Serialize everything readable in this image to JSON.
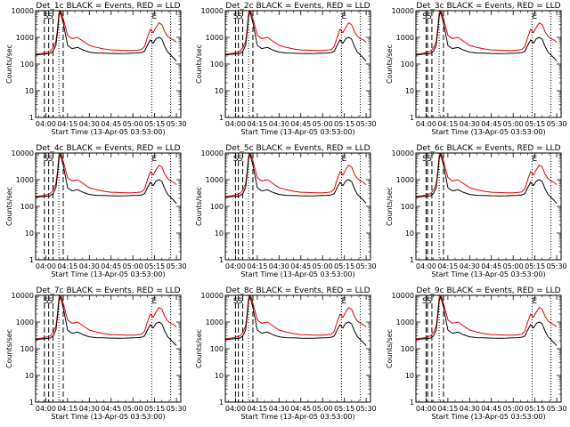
{
  "chart_data": {
    "type": "line",
    "grid": false,
    "y_scale": "log",
    "ylim": [
      1,
      10000
    ],
    "y_ticks": [
      1,
      10,
      100,
      1000,
      10000
    ],
    "y_tick_labels": [
      "1",
      "10",
      "100",
      "1000",
      "10000"
    ],
    "ylabel": "Counts/sec",
    "xlabel": "Start Time (13-Apr-05 03:53:00)",
    "xlim": [
      "03:53",
      "05:33"
    ],
    "x_ticks": [
      "04:00",
      "04:15",
      "04:30",
      "04:45",
      "05:00",
      "05:15",
      "05:30"
    ],
    "series_colors": {
      "events": "#000000",
      "lld": "#e00000"
    },
    "series_times": [
      "03:53",
      "03:57",
      "04:00",
      "04:03",
      "04:05",
      "04:07",
      "04:08",
      "04:09",
      "04:10",
      "04:12",
      "04:15",
      "04:18",
      "04:22",
      "04:26",
      "04:30",
      "04:35",
      "04:40",
      "04:45",
      "04:50",
      "04:55",
      "05:00",
      "05:03",
      "05:06",
      "05:08",
      "05:10",
      "05:12",
      "05:14",
      "05:16",
      "05:18",
      "05:20",
      "05:22",
      "05:24",
      "05:26",
      "05:28",
      "05:30"
    ],
    "lld_values": [
      240,
      250,
      270,
      300,
      400,
      700,
      2000,
      8000,
      12000,
      5000,
      1200,
      900,
      1000,
      700,
      500,
      420,
      370,
      340,
      330,
      320,
      320,
      330,
      350,
      450,
      1000,
      2000,
      1500,
      2400,
      3500,
      3000,
      1600,
      1100,
      900,
      800,
      650
    ],
    "events_values": [
      220,
      230,
      240,
      250,
      300,
      500,
      1500,
      6000,
      9000,
      3500,
      500,
      380,
      420,
      330,
      280,
      260,
      255,
      250,
      248,
      250,
      255,
      260,
      270,
      300,
      500,
      800,
      600,
      900,
      1000,
      850,
      450,
      280,
      220,
      170,
      130
    ],
    "panels": [
      {
        "title": "Det_1c BLACK = Events, RED = LLD",
        "dash_times": [
          "03:59",
          "04:02",
          "04:05",
          "04:12"
        ],
        "dot_times": [
          "04:09",
          "05:13",
          "05:26"
        ],
        "marks": [
          "S",
          "S",
          "E"
        ]
      },
      {
        "title": "Det_2c BLACK = Events, RED = LLD",
        "dash_times": [
          "04:00",
          "04:02",
          "04:05",
          "04:12"
        ],
        "dot_times": [
          "04:09",
          "05:13",
          "05:26"
        ],
        "marks": [
          "S",
          "S",
          "E"
        ]
      },
      {
        "title": "Det_3c BLACK = Events, RED = LLD",
        "dash_times": [
          "04:00",
          "04:01",
          "04:04",
          "04:12"
        ],
        "dot_times": [
          "04:09",
          "05:13",
          "05:26"
        ],
        "marks": [
          "S",
          "S",
          "E"
        ]
      },
      {
        "title": "Det_4c BLACK = Events, RED = LLD",
        "dash_times": [
          "03:59",
          "04:02",
          "04:05",
          "04:12"
        ],
        "dot_times": [
          "04:09",
          "05:13",
          "05:26"
        ],
        "marks": [
          "S",
          "S",
          "E"
        ]
      },
      {
        "title": "Det_5c BLACK = Events, RED = LLD",
        "dash_times": [
          "04:00",
          "04:02",
          "04:05",
          "04:12"
        ],
        "dot_times": [
          "04:09",
          "05:13",
          "05:26"
        ],
        "marks": [
          "S",
          "S",
          "E"
        ]
      },
      {
        "title": "Det_6c BLACK = Events, RED = LLD",
        "dash_times": [
          "04:00",
          "04:01",
          "04:04",
          "04:12"
        ],
        "dot_times": [
          "04:09",
          "05:13",
          "05:26"
        ],
        "marks": [
          "S",
          "S",
          "E"
        ]
      },
      {
        "title": "Det_7c BLACK = Events, RED = LLD",
        "dash_times": [
          "03:59",
          "04:02",
          "04:05",
          "04:12"
        ],
        "dot_times": [
          "04:09",
          "05:13",
          "05:26"
        ],
        "marks": [
          "S",
          "S",
          "E"
        ]
      },
      {
        "title": "Det_8c BLACK = Events, RED = LLD",
        "dash_times": [
          "04:00",
          "04:02",
          "04:05",
          "04:12"
        ],
        "dot_times": [
          "04:09",
          "05:13",
          "05:26"
        ],
        "marks": [
          "S",
          "S",
          "E"
        ]
      },
      {
        "title": "Det_9c BLACK = Events, RED = LLD",
        "dash_times": [
          "04:00",
          "04:01",
          "04:04",
          "04:12"
        ],
        "dot_times": [
          "04:09",
          "05:13",
          "05:26"
        ],
        "marks": [
          "S",
          "S",
          "E"
        ]
      }
    ]
  }
}
